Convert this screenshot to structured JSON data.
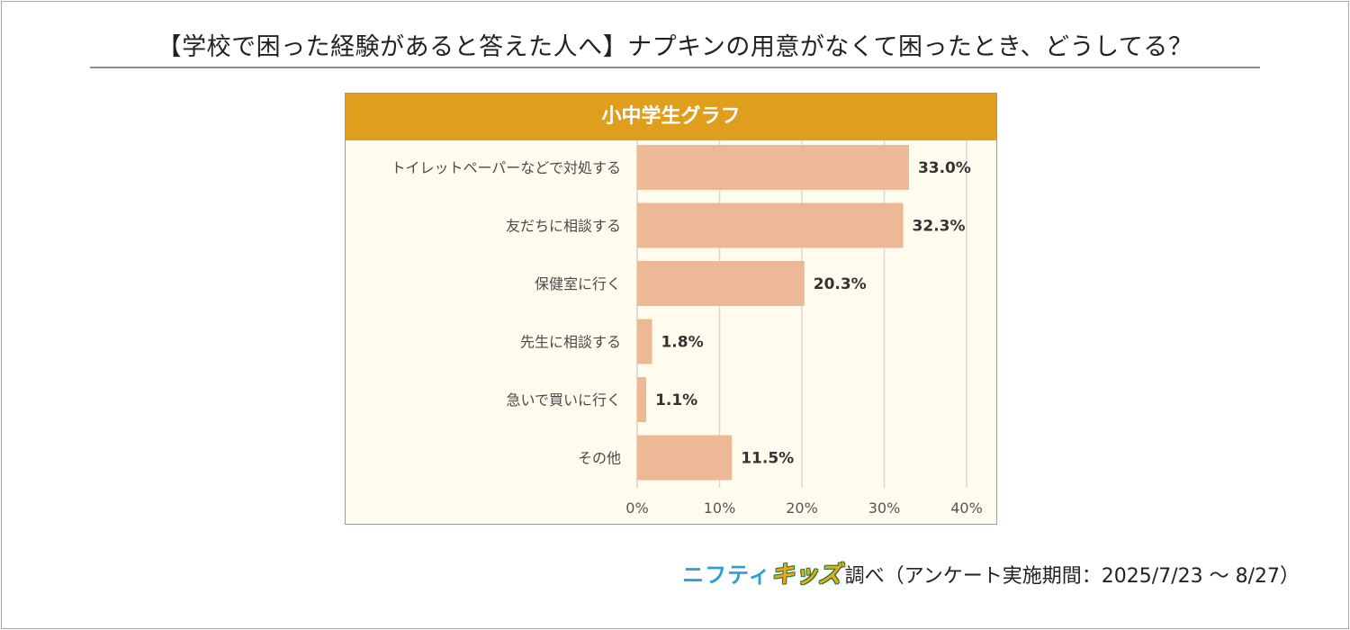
{
  "title": "【学校で困った経験があると答えた人へ】ナプキンの用意がなくて困ったとき、どうしてる？",
  "chart_data": {
    "type": "bar",
    "orientation": "horizontal",
    "title": "小中学生グラフ",
    "categories": [
      "トイレットペーパーなどで対処する",
      "友だちに相談する",
      "保健室に行く",
      "先生に相談する",
      "急いで買いに行く",
      "その他"
    ],
    "values": [
      33.0,
      32.3,
      20.3,
      1.8,
      1.1,
      11.5
    ],
    "value_labels": [
      "33.0%",
      "32.3%",
      "20.3%",
      "1.8%",
      "1.1%",
      "11.5%"
    ],
    "xlim": [
      0,
      40
    ],
    "xticks": [
      0,
      10,
      20,
      30,
      40
    ],
    "xtick_labels": [
      "0%",
      "10%",
      "20%",
      "30%",
      "40%"
    ],
    "xlabel": "",
    "ylabel": "",
    "grid": true,
    "colors": {
      "bar": "#ecb895",
      "header": "#e09e1f",
      "plot_bg": "#fffcee",
      "grid": "#d8d8d8"
    }
  },
  "footer": {
    "brand_part1": "ニフティ",
    "brand_part2": "キッズ",
    "text": "調べ（アンケート実施期間：2025/7/23 ～ 8/27）"
  }
}
